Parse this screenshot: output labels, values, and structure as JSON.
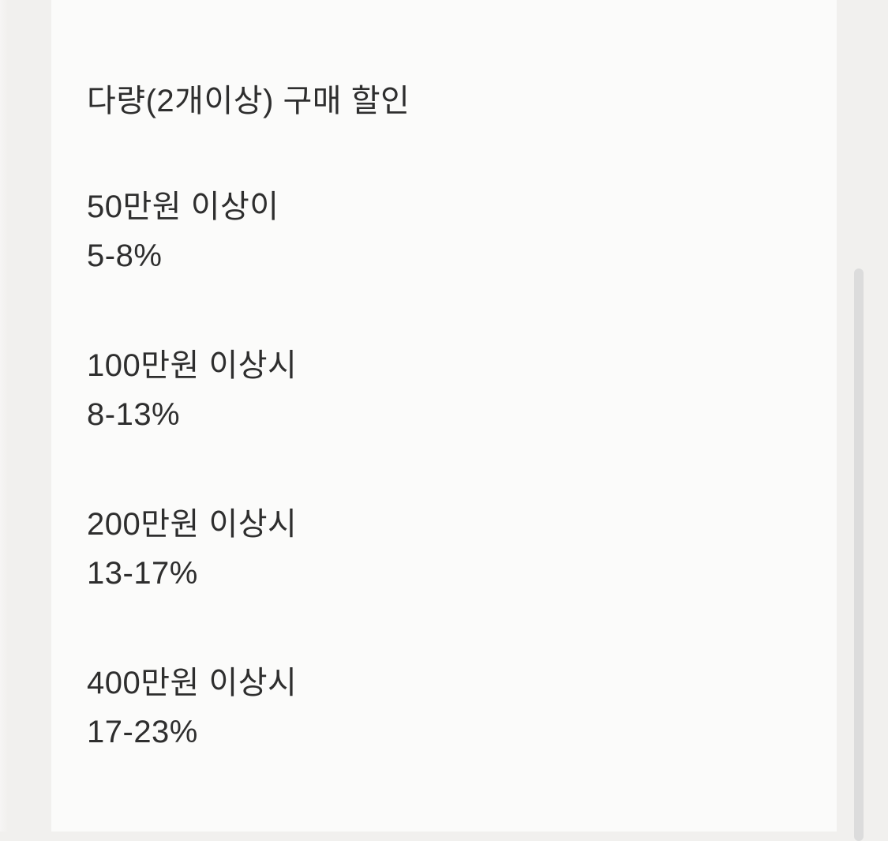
{
  "colors": {
    "page_background": "#f1f0ee",
    "content_background": "#fbfbfa",
    "text": "#2e2e2e",
    "scrollbar_thumb": "#dcdcdc"
  },
  "notice": {
    "title": "다량(2개이상) 구매 할인",
    "tiers": [
      {
        "condition": "50만원 이상이",
        "discount": "5-8%"
      },
      {
        "condition": "100만원 이상시",
        "discount": "8-13%"
      },
      {
        "condition": "200만원 이상시",
        "discount": "13-17%"
      },
      {
        "condition": "400만원 이상시",
        "discount": "17-23%"
      }
    ]
  }
}
